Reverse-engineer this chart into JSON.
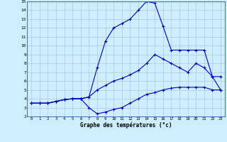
{
  "xlabel": "Graphe des températures (°c)",
  "xlim": [
    -0.5,
    23.5
  ],
  "ylim": [
    2,
    15
  ],
  "xticks": [
    0,
    1,
    2,
    3,
    4,
    5,
    6,
    7,
    8,
    9,
    10,
    11,
    12,
    13,
    14,
    15,
    16,
    17,
    18,
    19,
    20,
    21,
    22,
    23
  ],
  "yticks": [
    2,
    3,
    4,
    5,
    6,
    7,
    8,
    9,
    10,
    11,
    12,
    13,
    14,
    15
  ],
  "bg_color": "#cceeff",
  "grid_color": "#aabbcc",
  "line_color": "#0000bb",
  "line1_x": [
    0,
    1,
    2,
    3,
    4,
    5,
    6,
    7,
    8,
    9,
    10,
    11,
    12,
    13,
    14,
    15,
    16,
    17,
    18,
    19,
    20,
    21,
    22,
    23
  ],
  "line1_y": [
    3.5,
    3.5,
    3.5,
    3.7,
    3.9,
    4.0,
    4.0,
    4.2,
    7.5,
    10.5,
    12.0,
    12.5,
    13.0,
    14.0,
    15.0,
    14.8,
    12.2,
    9.5,
    9.5,
    9.5,
    9.5,
    9.5,
    6.5,
    6.5
  ],
  "line2_x": [
    0,
    1,
    2,
    3,
    4,
    5,
    6,
    7,
    8,
    9,
    10,
    11,
    12,
    13,
    14,
    15,
    16,
    17,
    18,
    19,
    20,
    21,
    22,
    23
  ],
  "line2_y": [
    3.5,
    3.5,
    3.5,
    3.7,
    3.9,
    4.0,
    4.0,
    3.0,
    2.3,
    2.5,
    2.8,
    3.0,
    3.5,
    4.0,
    4.5,
    4.7,
    5.0,
    5.2,
    5.3,
    5.3,
    5.3,
    5.3,
    5.0,
    5.0
  ],
  "line3_x": [
    0,
    1,
    2,
    3,
    4,
    5,
    6,
    7,
    8,
    9,
    10,
    11,
    12,
    13,
    14,
    15,
    16,
    17,
    18,
    19,
    20,
    21,
    22,
    23
  ],
  "line3_y": [
    3.5,
    3.5,
    3.5,
    3.7,
    3.9,
    4.0,
    4.0,
    4.2,
    5.0,
    5.5,
    6.0,
    6.3,
    6.7,
    7.2,
    8.0,
    9.0,
    8.5,
    8.0,
    7.5,
    7.0,
    8.0,
    7.5,
    6.5,
    5.0
  ]
}
